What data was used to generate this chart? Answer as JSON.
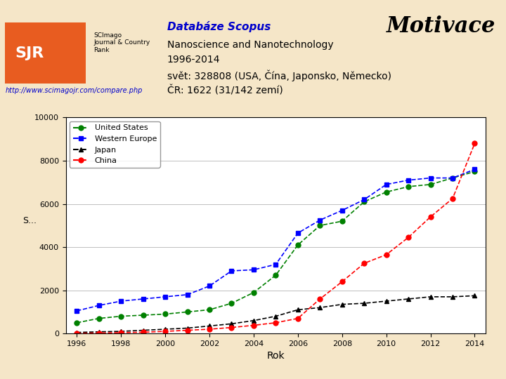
{
  "background_color": "#f5e6c8",
  "chart_bg": "#ffffff",
  "title": "Motivace",
  "title_italic": true,
  "title_fontsize": 22,
  "header_text1": "Databáze Scopus",
  "header_text2": "Nanoscience and Nanotechnology",
  "header_text3": "1996-2014",
  "header_text4": "svět: 328808 (USA, Čína, Japonsko, Německo)",
  "header_text5": "ČR: 1622 (31/142 zemí)",
  "link_text": "http://www.scimagojr.com/compare.php",
  "xlabel": "Rok",
  "ylabel": "S...",
  "years": [
    1996,
    1997,
    1998,
    1999,
    2000,
    2001,
    2002,
    2003,
    2004,
    2005,
    2006,
    2007,
    2008,
    2009,
    2010,
    2011,
    2012,
    2013,
    2014
  ],
  "united_states": [
    500,
    700,
    800,
    850,
    900,
    1000,
    1100,
    1400,
    1900,
    2700,
    4100,
    5000,
    5200,
    6100,
    6550,
    6800,
    6900,
    7200,
    7500
  ],
  "western_europe": [
    1050,
    1300,
    1500,
    1600,
    1700,
    1800,
    2200,
    2900,
    2950,
    3200,
    4650,
    5250,
    5700,
    6200,
    6900,
    7100,
    7200,
    7200,
    7600
  ],
  "japan": [
    50,
    80,
    100,
    150,
    200,
    250,
    350,
    450,
    600,
    800,
    1100,
    1200,
    1350,
    1400,
    1500,
    1600,
    1700,
    1700,
    1750
  ],
  "china": [
    10,
    20,
    40,
    60,
    100,
    150,
    200,
    280,
    380,
    500,
    700,
    1600,
    2400,
    3250,
    3650,
    4450,
    5400,
    6250,
    8800
  ],
  "us_color": "#008000",
  "we_color": "#0000ff",
  "japan_color": "#000000",
  "china_color": "#ff0000",
  "ylim": [
    0,
    10000
  ],
  "yticks": [
    0,
    2000,
    4000,
    6000,
    8000,
    10000
  ],
  "xticks": [
    1996,
    1998,
    2000,
    2002,
    2004,
    2006,
    2008,
    2010,
    2012,
    2014
  ],
  "sjr_box_color": "#e85c20",
  "sjr_text_color": "#ffffff"
}
